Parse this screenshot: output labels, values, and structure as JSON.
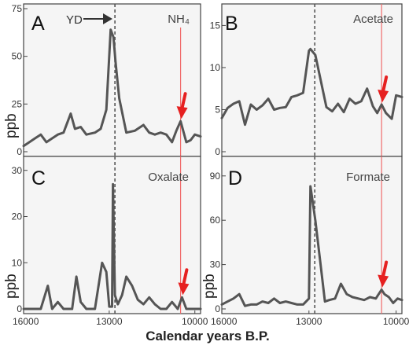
{
  "chart_data": [
    {
      "type": "line",
      "panel": "A",
      "title": "NH₄",
      "ylabel": "ppb",
      "xlabel": "",
      "xlim": [
        16000,
        9800
      ],
      "ylim": [
        0,
        75
      ],
      "yticks": [
        0,
        25,
        50,
        75
      ],
      "xticks": [],
      "xtick_labels": [],
      "x": [
        16000,
        15800,
        15600,
        15400,
        15200,
        15000,
        14800,
        14600,
        14350,
        14200,
        14000,
        13800,
        13500,
        13300,
        13100,
        12950,
        12850,
        12780,
        12650,
        12400,
        12100,
        11800,
        11600,
        11400,
        11200,
        11000,
        10800,
        10650,
        10500,
        10300,
        10150,
        10000,
        9800
      ],
      "y": [
        3,
        5,
        7,
        9,
        5,
        7,
        9,
        10,
        20,
        12,
        13,
        9,
        10,
        12,
        22,
        64,
        60,
        47,
        28,
        10,
        11,
        14,
        10,
        9,
        10,
        9,
        5,
        11,
        16,
        5,
        6,
        9,
        8
      ],
      "annotations": [
        "YD",
        "NH₄"
      ]
    },
    {
      "type": "line",
      "panel": "B",
      "title": "Acetate",
      "ylabel": "",
      "xlabel": "",
      "xlim": [
        16000,
        9800
      ],
      "ylim": [
        0,
        17
      ],
      "yticks": [
        0,
        5,
        10,
        15
      ],
      "xticks": [],
      "xtick_labels": [],
      "x": [
        16000,
        15800,
        15600,
        15400,
        15200,
        15000,
        14800,
        14600,
        14400,
        14200,
        14000,
        13800,
        13600,
        13400,
        13200,
        13000,
        12950,
        12780,
        12650,
        12400,
        12200,
        12000,
        11800,
        11600,
        11400,
        11200,
        11000,
        10800,
        10650,
        10500,
        10350,
        10150,
        10000,
        9800
      ],
      "y": [
        4,
        5.2,
        5.7,
        6,
        3.2,
        5.6,
        5,
        5.5,
        6.3,
        5,
        5.2,
        5.3,
        6.5,
        6.7,
        7,
        12,
        12.2,
        11.5,
        9.4,
        5.3,
        4.8,
        5.7,
        4.7,
        6.3,
        5.7,
        6,
        7.5,
        5.4,
        4.6,
        5.6,
        4.6,
        3.9,
        6.7,
        6.5
      ],
      "annotations": []
    },
    {
      "type": "line",
      "panel": "C",
      "title": "Oxalate",
      "ylabel": "ppb",
      "xlabel": "",
      "xlim": [
        16000,
        9800
      ],
      "ylim": [
        0,
        32
      ],
      "yticks": [
        0,
        10,
        20,
        30
      ],
      "xticks": [
        16000,
        13000,
        10000
      ],
      "xtick_labels": [
        "16000",
        "13000",
        "10000"
      ],
      "x": [
        16000,
        15700,
        15400,
        15150,
        15000,
        14800,
        14600,
        14300,
        14150,
        14000,
        13800,
        13500,
        13250,
        13100,
        13000,
        12900,
        12870,
        12800,
        12700,
        12550,
        12400,
        12200,
        12000,
        11800,
        11600,
        11400,
        11200,
        11000,
        10800,
        10600,
        10450,
        10300,
        10100,
        9800
      ],
      "y": [
        0,
        0,
        0,
        5,
        0,
        1.5,
        0,
        0,
        7,
        1.5,
        0,
        0,
        10,
        8,
        0.5,
        0.5,
        27,
        3,
        1,
        3,
        7,
        5,
        2,
        1,
        2.5,
        1,
        0,
        0,
        1.5,
        0,
        2.5,
        0,
        0,
        0
      ],
      "annotations": []
    },
    {
      "type": "line",
      "panel": "D",
      "title": "Formate",
      "ylabel": "ppb",
      "xlabel": "",
      "xlim": [
        16000,
        9800
      ],
      "ylim": [
        0,
        100
      ],
      "yticks": [
        0,
        30,
        60,
        90
      ],
      "xticks": [
        16000,
        13000,
        10000
      ],
      "xtick_labels": [
        "16000",
        "13000",
        "10000"
      ],
      "x": [
        16000,
        15800,
        15600,
        15400,
        15200,
        15000,
        14800,
        14600,
        14400,
        14200,
        14000,
        13800,
        13600,
        13400,
        13200,
        13000,
        12950,
        12780,
        12600,
        12450,
        12300,
        12100,
        11900,
        11700,
        11500,
        11300,
        11100,
        10900,
        10700,
        10500,
        10400,
        10250,
        10100,
        9950,
        9800
      ],
      "y": [
        3,
        5,
        7,
        10,
        2,
        3,
        3,
        5,
        4,
        7,
        4,
        5,
        4,
        3,
        3,
        7,
        83,
        60,
        30,
        5,
        6,
        7,
        17,
        10,
        8,
        7,
        6,
        8,
        7,
        13,
        10,
        8,
        4,
        7,
        6
      ],
      "annotations": []
    }
  ],
  "figure": {
    "xlabel": "Calendar years B.P.",
    "yd_label": "YD",
    "yd_year": 12800,
    "event_year": 10500,
    "series_color": "#555555",
    "event_line_color": "#f06a6a",
    "arrow_color": "#e62020",
    "panel_bg": "#f5f5f5"
  }
}
